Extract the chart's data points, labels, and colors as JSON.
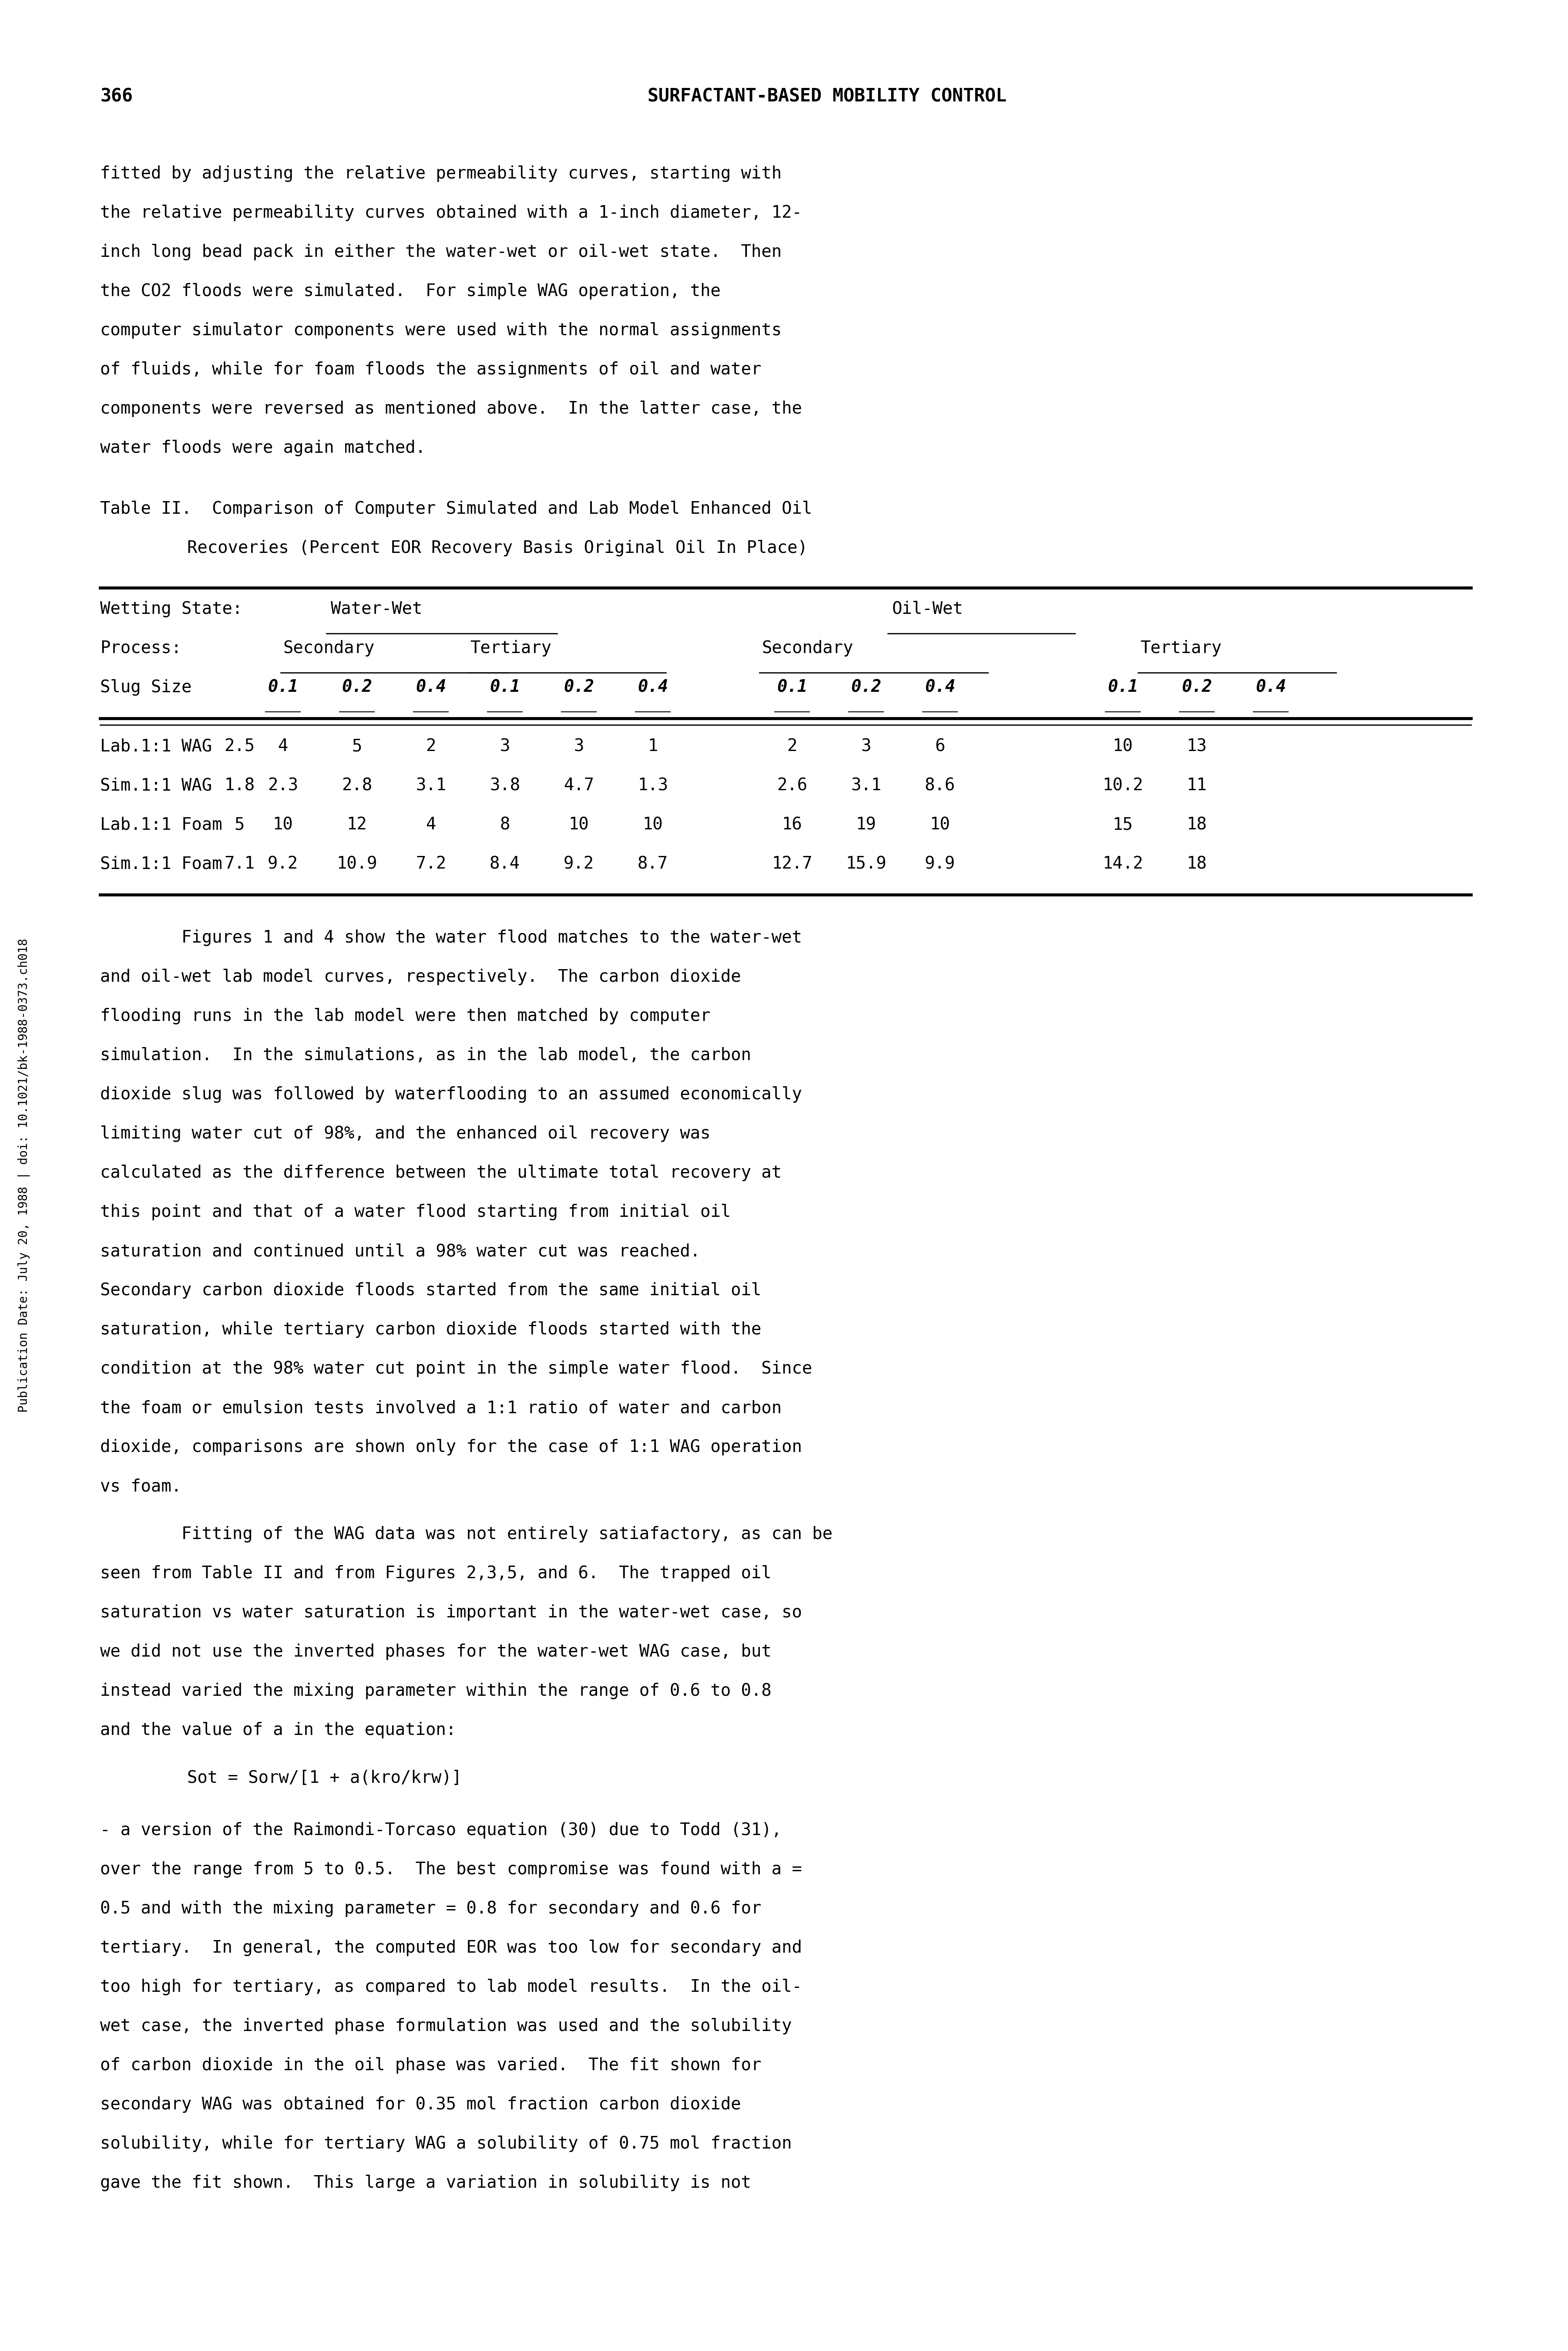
{
  "page_number": "366",
  "header_title": "SURFACTANT-BASED MOBILITY CONTROL",
  "side_label": "Publication Date: July 20, 1988 | doi: 10.1021/bk-1988-0373.ch018",
  "paragraph1": "fitted by adjusting the relative permeability curves, starting with\nthe relative permeability curves obtained with a 1-inch diameter, 12-\ninch long bead pack in either the water-wet or oil-wet state.  Then\nthe CO2 floods were simulated.  For simple WAG operation, the\ncomputer simulator components were used with the normal assignments\nof fluids, while for foam floods the assignments of oil and water\ncomponents were reversed as mentioned above.  In the latter case, the\nwater floods were again matched.",
  "table_title_line1": "Table II.  Comparison of Computer Simulated and Lab Model Enhanced Oil",
  "table_title_line2": "Recoveries (Percent EOR Recovery Basis Original Oil In Place)",
  "table_header_row1_col1": "Wetting State:",
  "table_header_row1_ww": "Water-Wet",
  "table_header_row1_ow": "Oil-Wet",
  "table_header_row2_col1": "Process:",
  "table_header_row2_ww_sec": "Secondary",
  "table_header_row2_ww_ter": "Tertiary",
  "table_header_row2_ow_sec": "Secondary",
  "table_header_row2_ow_ter": "Tertiary",
  "table_header_row3": "Slug Size   0.1  0.2  0.4  0.1  0.2  0.4    0.1  0.2  0.4  0.1 0.2 0.4",
  "table_data_rows": [
    "Lab.1:1 WAG 2.5   4    5    2    3    3     1    2    3    6   10   13",
    "Sim.1:1 WAG 1.8  2.3  2.8  3.1  3.8  4.7   1.3  2.6  3.1  8.6 10.2  11",
    "Lab.1:1 Foam 5   10   12    4    8   10    10   16   19   10   15   18",
    "Sim.1:1 Foam 7.1 9.2 10.9  7.2  8.4  9.2   8.7 12.7 15.9  9.9 14.2  18"
  ],
  "paragraph2": "        Figures 1 and 4 show the water flood matches to the water-wet\nand oil-wet lab model curves, respectively.  The carbon dioxide\nflooding runs in the lab model were then matched by computer\nsimulation.  In the simulations, as in the lab model, the carbon\ndioxide slug was followed by waterflooding to an assumed economically\nlimiting water cut of 98%, and the enhanced oil recovery was\ncalculated as the difference between the ultimate total recovery at\nthis point and that of a water flood starting from initial oil\nsaturation and continued until a 98% water cut was reached.\nSecondary carbon dioxide floods started from the same initial oil\nsaturation, while tertiary carbon dioxide floods started with the\ncondition at the 98% water cut point in the simple water flood.  Since\nthe foam or emulsion tests involved a 1:1 ratio of water and carbon\ndioxide, comparisons are shown only for the case of 1:1 WAG operation\nvs foam.",
  "paragraph3": "        Fitting of the WAG data was not entirely satiafactory, as can be\nseen from Table II and from Figures 2,3,5, and 6.  The trapped oil\nsaturation vs water saturation is important in the water-wet case, so\nwe did not use the inverted phases for the water-wet WAG case, but\ninstead varied the mixing parameter within the range of 0.6 to 0.8\nand the value of a in the equation:",
  "equation": "        Sot = Sorw/[1 + a(kro/krw)]",
  "paragraph4": "- a version of the Raimondi-Torcaso equation (30) due to Todd (31),\nover the range from 5 to 0.5.  The best compromise was found with a =\n0.5 and with the mixing parameter = 0.8 for secondary and 0.6 for\ntertiary.  In general, the computed EOR was too low for secondary and\ntoo high for tertiary, as compared to lab model results.  In the oil-\nwet case, the inverted phase formulation was used and the solubility\nof carbon dioxide in the oil phase was varied.  The fit shown for\nsecondary WAG was obtained for 0.35 mol fraction carbon dioxide\nsolubility, while for tertiary WAG a solubility of 0.75 mol fraction\ngave the fit shown.  This large a variation in solubility is not",
  "bg_color": "#ffffff",
  "text_color": "#000000",
  "font_family": "monospace"
}
